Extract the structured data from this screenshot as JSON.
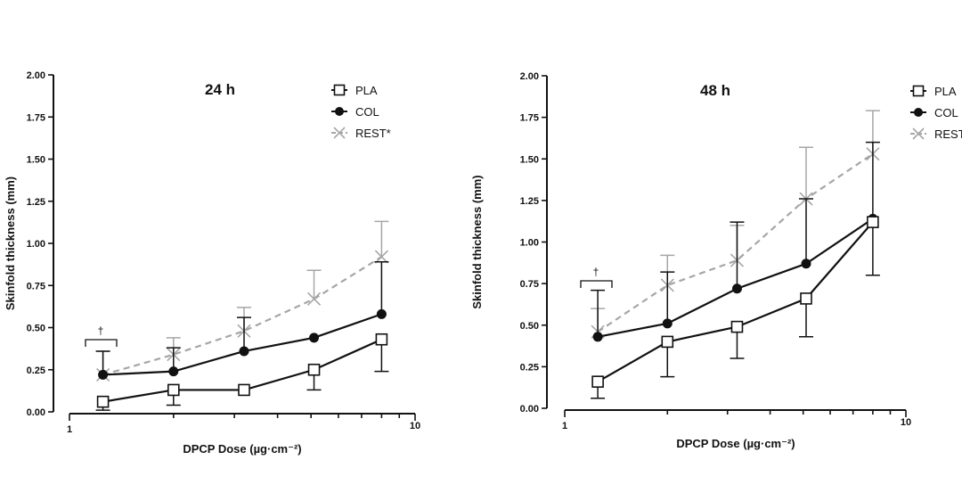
{
  "figure": {
    "xlabel": "DPCP Dose (µg·cm⁻²)",
    "ylabel": "Skinfold thickness (mm)",
    "x_tick_labels": [
      "1",
      "10"
    ],
    "y_tick_labels": [
      "0.00",
      "0.25",
      "0.50",
      "0.75",
      "1.00",
      "1.25",
      "1.50",
      "1.75",
      "2.00"
    ],
    "significance_mark": "†",
    "colors": {
      "PLA": "#111111",
      "COL": "#111111",
      "REST": "#a6a6a6"
    },
    "markers": {
      "PLA": "open-square",
      "COL": "filled-circle",
      "REST": "x-cross"
    }
  },
  "chart_data": [
    {
      "type": "line",
      "title": "24 h",
      "xlabel": "DPCP Dose (µg·cm⁻²)",
      "ylabel": "Skinfold thickness (mm)",
      "x_scale": "log",
      "xlim": [
        1,
        10
      ],
      "ylim": [
        0,
        2.0
      ],
      "legend_position": "top-right",
      "grid": false,
      "x": [
        1.25,
        2,
        3.2,
        5.1,
        8
      ],
      "series": [
        {
          "name": "PLA",
          "values": [
            0.06,
            0.13,
            0.13,
            0.25,
            0.43
          ],
          "err": [
            0.05,
            0.09,
            0.0,
            0.12,
            0.19
          ],
          "err_dir": "down"
        },
        {
          "name": "COL",
          "values": [
            0.22,
            0.24,
            0.36,
            0.44,
            0.58
          ],
          "err": [
            0.14,
            0.14,
            0.2,
            0.0,
            0.31
          ],
          "err_dir": "up"
        },
        {
          "name": "REST*",
          "values": [
            0.22,
            0.34,
            0.48,
            0.67,
            0.92
          ],
          "err": [
            0.14,
            0.1,
            0.14,
            0.17,
            0.21
          ],
          "err_dir": "up"
        }
      ]
    },
    {
      "type": "line",
      "title": "48 h",
      "xlabel": "DPCP Dose (µg·cm⁻²)",
      "ylabel": "Skinfold thickness (mm)",
      "x_scale": "log",
      "xlim": [
        1,
        10
      ],
      "ylim": [
        0,
        2.0
      ],
      "legend_position": "top-right",
      "grid": false,
      "x": [
        1.25,
        2,
        3.2,
        5.1,
        8
      ],
      "series": [
        {
          "name": "PLA",
          "values": [
            0.16,
            0.4,
            0.49,
            0.66,
            1.12
          ],
          "err": [
            0.1,
            0.21,
            0.19,
            0.23,
            0.32
          ],
          "err_dir": "down"
        },
        {
          "name": "COL",
          "values": [
            0.43,
            0.51,
            0.72,
            0.87,
            1.14
          ],
          "err": [
            0.28,
            0.31,
            0.4,
            0.39,
            0.46
          ],
          "err_dir": "up"
        },
        {
          "name": "REST",
          "values": [
            0.46,
            0.74,
            0.89,
            1.26,
            1.53
          ],
          "err": [
            0.14,
            0.18,
            0.21,
            0.31,
            0.26
          ],
          "err_dir": "up"
        }
      ]
    }
  ]
}
